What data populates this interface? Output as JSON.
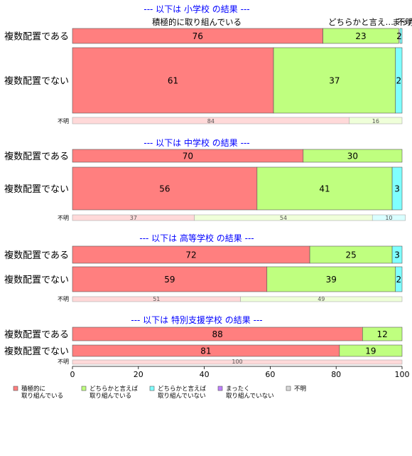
{
  "chart_data": {
    "type": "bar",
    "orientation": "horizontal",
    "stacked": true,
    "xlim": [
      0,
      100
    ],
    "x_ticks": [
      "0",
      "20",
      "40",
      "60",
      "80",
      "100"
    ],
    "top_annotations": [
      "積極的に取り組んでいる",
      "どちらかと言え…",
      "まった…",
      "不明"
    ],
    "legend": [
      {
        "label": "積極的に\n取り組んでいる",
        "color": "#ff7f7f"
      },
      {
        "label": "どちらかと言えば\n取り組んでいる",
        "color": "#bfff7f"
      },
      {
        "label": "どちらかと言えば\n取り組んでいない",
        "color": "#7fffff"
      },
      {
        "label": "まったく\n取り組んでいない",
        "color": "#bf7fff"
      },
      {
        "label": "不明",
        "color": "#d9d9d9"
      }
    ],
    "groups": [
      {
        "title": "--- 以下は 小学校 の結果 ---",
        "rows": [
          {
            "label": "複数配置である",
            "values": [
              76,
              23,
              0,
              0,
              0
            ],
            "labels": [
              "76",
              "23",
              "",
              "",
              ""
            ],
            "tiny_right_label": "2",
            "weight": 1
          },
          {
            "label": "複数配置でない",
            "values": [
              61,
              37,
              2,
              0,
              0
            ],
            "labels": [
              "61",
              "37",
              "2",
              "",
              ""
            ],
            "weight": 4
          }
        ],
        "unknown_row": {
          "label": "不明",
          "values": [
            84,
            16,
            0,
            0,
            0
          ],
          "labels": [
            "84",
            "16",
            "",
            "",
            ""
          ]
        }
      },
      {
        "title": "--- 以下は 中学校 の結果 ---",
        "rows": [
          {
            "label": "複数配置である",
            "values": [
              70,
              30,
              0,
              0,
              0
            ],
            "labels": [
              "70",
              "30",
              "",
              "",
              ""
            ],
            "weight": 1
          },
          {
            "label": "複数配置でない",
            "values": [
              56,
              41,
              3,
              0,
              0
            ],
            "labels": [
              "56",
              "41",
              "3",
              "",
              ""
            ],
            "weight": 3
          }
        ],
        "unknown_row": {
          "label": "不明",
          "values": [
            37,
            54,
            10,
            0,
            0
          ],
          "labels": [
            "37",
            "54",
            "10",
            "",
            ""
          ]
        }
      },
      {
        "title": "--- 以下は 高等学校 の結果 ---",
        "rows": [
          {
            "label": "複数配置である",
            "values": [
              72,
              25,
              3,
              0,
              0
            ],
            "labels": [
              "72",
              "25",
              "3",
              "",
              ""
            ],
            "weight": 1
          },
          {
            "label": "複数配置でない",
            "values": [
              59,
              39,
              2,
              0,
              0
            ],
            "labels": [
              "59",
              "39",
              "2",
              "",
              ""
            ],
            "weight": 1
          }
        ],
        "unknown_row": {
          "label": "不明",
          "values": [
            51,
            49,
            0,
            0,
            0
          ],
          "labels": [
            "51",
            "49",
            "",
            "",
            ""
          ]
        }
      },
      {
        "title": "--- 以下は 特別支援学校 の結果 ---",
        "rows": [
          {
            "label": "複数配置である",
            "values": [
              88,
              12,
              0,
              0,
              0
            ],
            "labels": [
              "88",
              "12",
              "",
              "",
              ""
            ],
            "weight": 1
          },
          {
            "label": "複数配置でない",
            "values": [
              81,
              19,
              0,
              0,
              0
            ],
            "labels": [
              "81",
              "19",
              "",
              "",
              ""
            ],
            "weight": 1
          }
        ],
        "unknown_row": {
          "label": "不明",
          "values": [
            100,
            0,
            0,
            0,
            0
          ],
          "labels": [
            "100",
            "",
            "",
            "",
            ""
          ]
        }
      }
    ]
  }
}
